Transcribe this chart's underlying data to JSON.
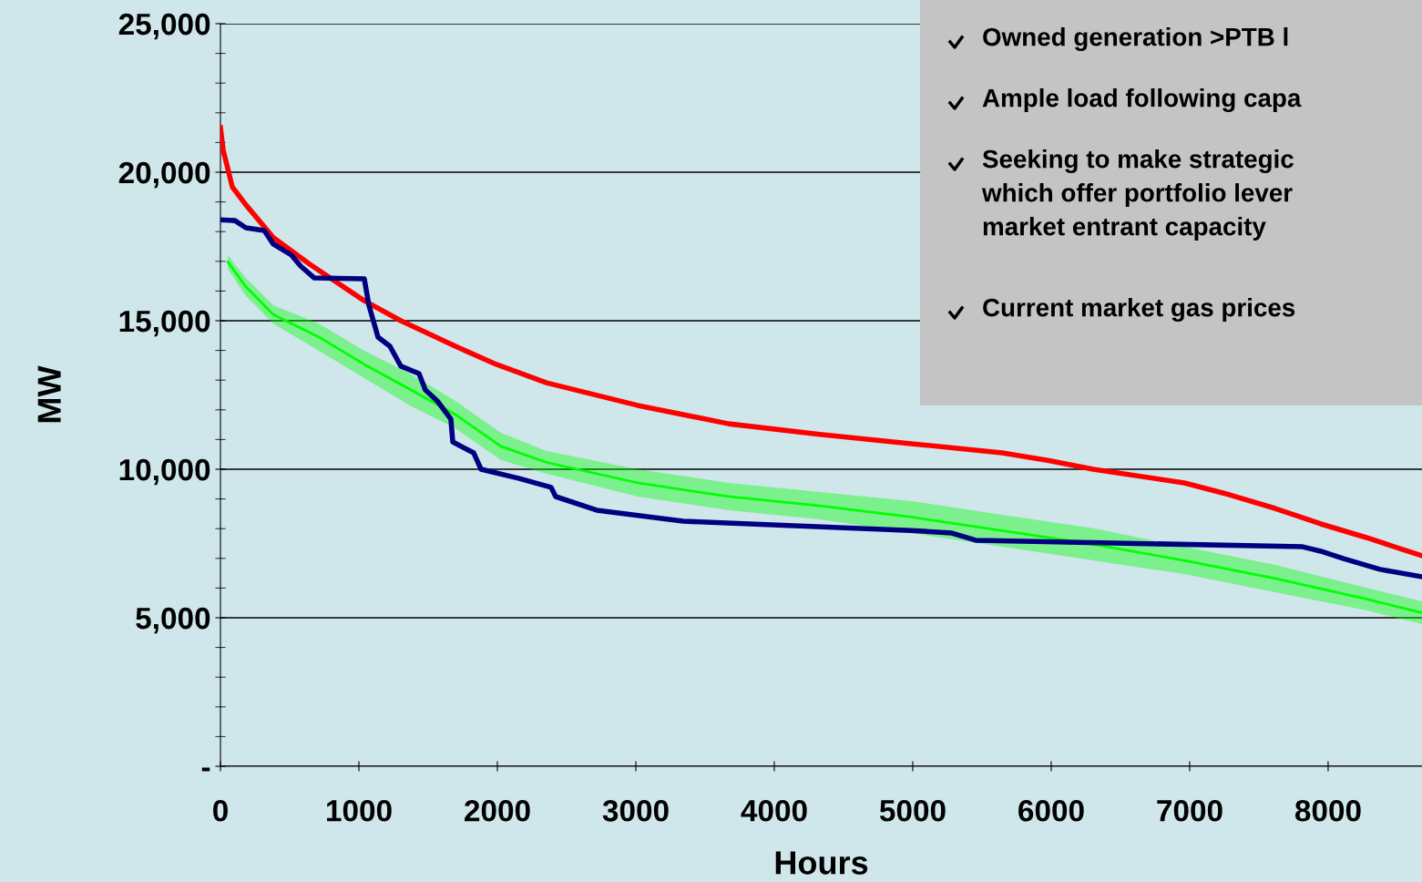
{
  "chart_data": {
    "type": "line",
    "xlabel": "Hours",
    "ylabel": "MW",
    "xlim": [
      0,
      8678
    ],
    "xticks": [
      0,
      1000,
      2000,
      3000,
      4000,
      5000,
      6000,
      7000,
      8000
    ],
    "ylim": [
      0,
      25000
    ],
    "yticks": [
      {
        "value": 0,
        "label": "-"
      },
      {
        "value": 1000,
        "label": null
      },
      {
        "value": 2000,
        "label": null
      },
      {
        "value": 3000,
        "label": null
      },
      {
        "value": 4000,
        "label": null
      },
      {
        "value": 5000,
        "label": "5,000"
      },
      {
        "value": 6000,
        "label": null
      },
      {
        "value": 7000,
        "label": null
      },
      {
        "value": 8000,
        "label": null
      },
      {
        "value": 9000,
        "label": null
      },
      {
        "value": 10000,
        "label": "10,000"
      },
      {
        "value": 11000,
        "label": null
      },
      {
        "value": 12000,
        "label": null
      },
      {
        "value": 13000,
        "label": null
      },
      {
        "value": 14000,
        "label": null
      },
      {
        "value": 15000,
        "label": "15,000"
      },
      {
        "value": 16000,
        "label": null
      },
      {
        "value": 17000,
        "label": null
      },
      {
        "value": 18000,
        "label": null
      },
      {
        "value": 19000,
        "label": null
      },
      {
        "value": 20000,
        "label": "20,000"
      },
      {
        "value": 21000,
        "label": null
      },
      {
        "value": 22000,
        "label": null
      },
      {
        "value": 23000,
        "label": null
      },
      {
        "value": 24000,
        "label": null
      },
      {
        "value": 25000,
        "label": "25,000"
      }
    ],
    "grid": "y",
    "marker": "none",
    "line_style": "solid",
    "series": [
      {
        "color": "#00ff00",
        "x": [
          53,
          184,
          382,
          711,
          1039,
          1368,
          1697,
          2026,
          2355,
          3013,
          3671,
          4329,
          4987,
          5645,
          6303,
          6961,
          7618,
          8276,
          8678
        ],
        "values": [
          16980,
          16140,
          15210,
          14450,
          13530,
          12690,
          11840,
          10770,
          10230,
          9540,
          9080,
          8770,
          8390,
          7930,
          7470,
          6930,
          6320,
          5630,
          5170
        ],
        "lower": [
          16750,
          15830,
          14900,
          13990,
          13070,
          12150,
          11380,
          10310,
          9850,
          9080,
          8620,
          8310,
          7850,
          7390,
          6930,
          6470,
          5860,
          5250,
          4790
        ],
        "upper": [
          17200,
          16440,
          15520,
          14900,
          13990,
          13220,
          12300,
          11230,
          10610,
          10000,
          9540,
          9230,
          8930,
          8470,
          8010,
          7390,
          6780,
          6010,
          5550
        ]
      },
      {
        "color": "#ff0000",
        "x": [
          0,
          20,
          86,
          184,
          382,
          645,
          1039,
          1303,
          1697,
          1993,
          2355,
          3013,
          3671,
          4329,
          4987,
          5645,
          5974,
          6303,
          6961,
          7289,
          7618,
          7947,
          8276,
          8539,
          8678
        ],
        "values": [
          21500,
          20740,
          19500,
          18900,
          17800,
          16900,
          15670,
          15000,
          14140,
          13530,
          12910,
          12150,
          11530,
          11170,
          10860,
          10550,
          10300,
          10000,
          9540,
          9140,
          8680,
          8160,
          7700,
          7300,
          7090
        ]
      },
      {
        "color": "#000080",
        "x": [
          0,
          105,
          184,
          316,
          382,
          513,
          579,
          678,
          1039,
          1072,
          1138,
          1224,
          1303,
          1434,
          1480,
          1566,
          1664,
          1678,
          1829,
          1882,
          2158,
          2388,
          2421,
          2717,
          3342,
          4987,
          5283,
          5454,
          7816,
          7947,
          8112,
          8375,
          8678
        ],
        "values": [
          18400,
          18370,
          18130,
          18040,
          17580,
          17210,
          16840,
          16440,
          16410,
          15520,
          14450,
          14140,
          13470,
          13220,
          12670,
          12300,
          11690,
          10920,
          10550,
          10000,
          9690,
          9390,
          9080,
          8620,
          8250,
          7940,
          7850,
          7610,
          7390,
          7240,
          6990,
          6630,
          6380
        ]
      }
    ],
    "annotations": [
      "Owned generation >PTB l",
      "Ample load following capa",
      "Seeking to make strategic\nwhich offer portfolio lever\nmarket entrant capacity",
      "Current market gas prices"
    ]
  }
}
